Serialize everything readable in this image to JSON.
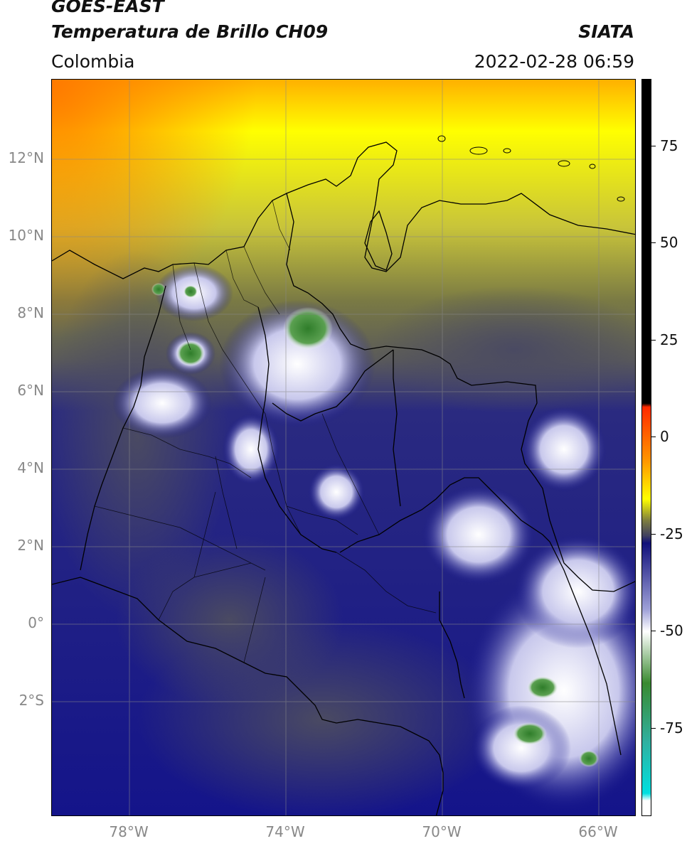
{
  "header": {
    "satellite": "GOES-EAST",
    "product": "Temperatura de Brillo CH09",
    "source": "SIATA",
    "region": "Colombia",
    "datetime": "2022-02-28 06:59"
  },
  "axes": {
    "lat_labels": [
      "12°N",
      "10°N",
      "8°N",
      "6°N",
      "4°N",
      "2°N",
      "0°",
      "2°S"
    ],
    "lon_labels": [
      "78°W",
      "74°W",
      "70°W",
      "66°W"
    ]
  },
  "colorbar": {
    "ticks": [
      "75",
      "50",
      "25",
      "0",
      "-25",
      "-50",
      "-75"
    ],
    "colors": {
      "black": "#000000",
      "red": "#ff2a00",
      "orange": "#ff9900",
      "yellow": "#ffff00",
      "olive": "#7a7a40",
      "gray": "#404060",
      "navy": "#10107a",
      "lightblue": "#9ea0d8",
      "white": "#ffffff",
      "green": "#3a8a30",
      "teal": "#30b0a0",
      "cyan": "#00e0e0"
    }
  }
}
